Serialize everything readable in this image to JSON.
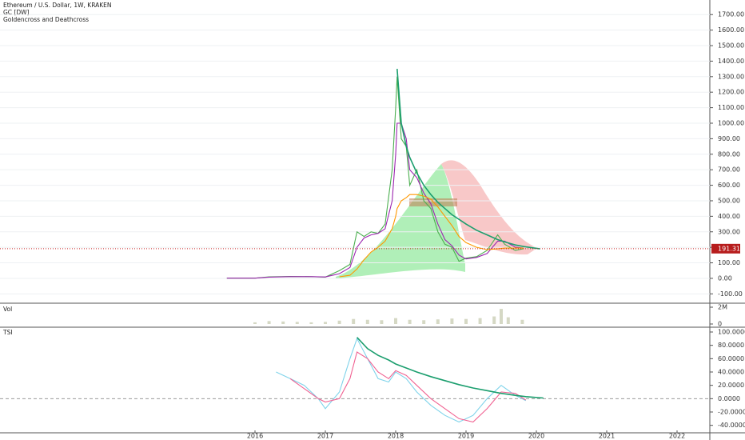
{
  "chart_data": [
    {
      "type": "line",
      "title": "Ethereum / U.S. Dollar, 1W, KRAKEN",
      "subtitle": "GC [DW]",
      "annotation": "Goldencross and Deathcross",
      "x": [
        2015.6,
        2016.0,
        2016.2,
        2016.5,
        2016.8,
        2017.0,
        2017.2,
        2017.35,
        2017.45,
        2017.55,
        2017.65,
        2017.75,
        2017.85,
        2017.95,
        2018.0,
        2018.02,
        2018.08,
        2018.15,
        2018.2,
        2018.3,
        2018.4,
        2018.5,
        2018.6,
        2018.7,
        2018.8,
        2018.9,
        2019.0,
        2019.15,
        2019.3,
        2019.45,
        2019.55,
        2019.7,
        2019.82,
        2020.05
      ],
      "series": [
        {
          "color": "#4caf50",
          "values": [
            1,
            1,
            10,
            12,
            11,
            8,
            50,
            90,
            300,
            270,
            300,
            290,
            350,
            700,
            1100,
            1300,
            900,
            850,
            600,
            700,
            500,
            450,
            300,
            220,
            200,
            110,
            130,
            140,
            180,
            280,
            220,
            180,
            191.31,
            null
          ]
        },
        {
          "color": "#9c27b0",
          "values": [
            1,
            1,
            8,
            11,
            11,
            9,
            30,
            70,
            200,
            260,
            280,
            290,
            320,
            500,
            800,
            1000,
            1000,
            900,
            700,
            650,
            550,
            480,
            350,
            250,
            210,
            150,
            125,
            135,
            160,
            240,
            240,
            200,
            195,
            null
          ]
        },
        {
          "color": "#ff9800",
          "values": [
            null,
            null,
            null,
            null,
            null,
            null,
            10,
            20,
            60,
            120,
            170,
            200,
            240,
            320,
            400,
            450,
            500,
            520,
            540,
            540,
            530,
            510,
            460,
            400,
            340,
            270,
            230,
            200,
            185,
            190,
            195,
            195,
            195,
            null
          ]
        },
        {
          "color": "#1b9e6e",
          "values": [
            null,
            null,
            null,
            null,
            null,
            null,
            null,
            null,
            null,
            null,
            null,
            null,
            null,
            null,
            null,
            1350,
            1000,
            850,
            780,
            680,
            600,
            540,
            490,
            450,
            410,
            380,
            350,
            310,
            280,
            250,
            235,
            215,
            205,
            190
          ]
        }
      ],
      "last_price": 191.31,
      "xlim": [
        2012.375,
        2022.466
      ],
      "ylim": [
        -155,
        1794
      ],
      "yticks": [
        {
          "value": 1700,
          "label": "1700.00"
        },
        {
          "value": 1600,
          "label": "1600.00"
        },
        {
          "value": 1500,
          "label": "1500.00"
        },
        {
          "value": 1400,
          "label": "1400.00"
        },
        {
          "value": 1300,
          "label": "1300.00"
        },
        {
          "value": 1200,
          "label": "1200.00"
        },
        {
          "value": 1100,
          "label": "1100.00"
        },
        {
          "value": 1000,
          "label": "1000.00"
        },
        {
          "value": 900,
          "label": "900.00"
        },
        {
          "value": 800,
          "label": "800.00"
        },
        {
          "value": 700,
          "label": "700.00"
        },
        {
          "value": 600,
          "label": "600.00"
        },
        {
          "value": 500,
          "label": "500.00"
        },
        {
          "value": 400,
          "label": "400.00"
        },
        {
          "value": 300,
          "label": "300.00"
        },
        {
          "value": 200,
          "label": "200.00"
        },
        {
          "value": 100,
          "label": "100.00"
        },
        {
          "value": 0,
          "label": "0.00"
        },
        {
          "value": -100,
          "label": "-100.00"
        }
      ],
      "grid": true
    },
    {
      "type": "bar",
      "title": "Vol",
      "color": "#d5d8c4",
      "x": [
        2016.0,
        2016.2,
        2016.4,
        2016.6,
        2016.8,
        2017.0,
        2017.2,
        2017.4,
        2017.6,
        2017.8,
        2018.0,
        2018.2,
        2018.4,
        2018.6,
        2018.8,
        2019.0,
        2019.2,
        2019.4,
        2019.5,
        2019.6,
        2019.8
      ],
      "values": [
        200000,
        350000,
        300000,
        250000,
        200000,
        250000,
        400000,
        600000,
        500000,
        450000,
        700000,
        500000,
        450000,
        550000,
        650000,
        600000,
        700000,
        900000,
        1800000,
        800000,
        500000
      ],
      "xlim": [
        2012.375,
        2022.466
      ],
      "ylim": [
        0,
        2000000
      ],
      "yticks": [
        {
          "value": 2000000,
          "label": "2M"
        },
        0
      ]
    },
    {
      "type": "line",
      "title": "TSI",
      "x": [
        2016.3,
        2016.5,
        2016.7,
        2016.9,
        2017.0,
        2017.2,
        2017.35,
        2017.45,
        2017.6,
        2017.75,
        2017.9,
        2018.0,
        2018.15,
        2018.3,
        2018.5,
        2018.7,
        2018.9,
        2019.1,
        2019.3,
        2019.5,
        2019.7,
        2019.85,
        2020.1
      ],
      "series": [
        {
          "color": "#7fd3ea",
          "values": [
            40,
            30,
            20,
            0,
            -15,
            10,
            60,
            90,
            60,
            30,
            25,
            40,
            30,
            10,
            -10,
            -25,
            -35,
            -25,
            0,
            20,
            5,
            -3,
            null
          ]
        },
        {
          "color": "#f06292",
          "values": [
            null,
            30,
            15,
            0,
            -5,
            0,
            30,
            70,
            60,
            40,
            30,
            42,
            35,
            20,
            0,
            -15,
            -30,
            -35,
            -15,
            10,
            8,
            -2,
            null
          ]
        },
        {
          "color": "#1b9e6e",
          "values": [
            null,
            null,
            null,
            null,
            null,
            null,
            null,
            92,
            75,
            65,
            58,
            52,
            46,
            40,
            33,
            27,
            21,
            16,
            12,
            8,
            5,
            3,
            1
          ]
        }
      ],
      "xlim": [
        2012.375,
        2022.466
      ],
      "ylim": [
        -50,
        106
      ],
      "yticks": [
        {
          "value": 100,
          "label": "100.0000"
        },
        {
          "value": 80,
          "label": "80.0000"
        },
        {
          "value": 60,
          "label": "60.0000"
        },
        {
          "value": 40,
          "label": "40.0000"
        },
        {
          "value": 20,
          "label": "20.0000"
        },
        {
          "value": 0,
          "label": "0.0000"
        },
        {
          "value": -20,
          "label": "-20.0000"
        },
        {
          "value": -40,
          "label": "-40.0000"
        }
      ],
      "xticks": [
        2016,
        2017,
        2018,
        2019,
        2020,
        2021,
        2022
      ]
    }
  ]
}
